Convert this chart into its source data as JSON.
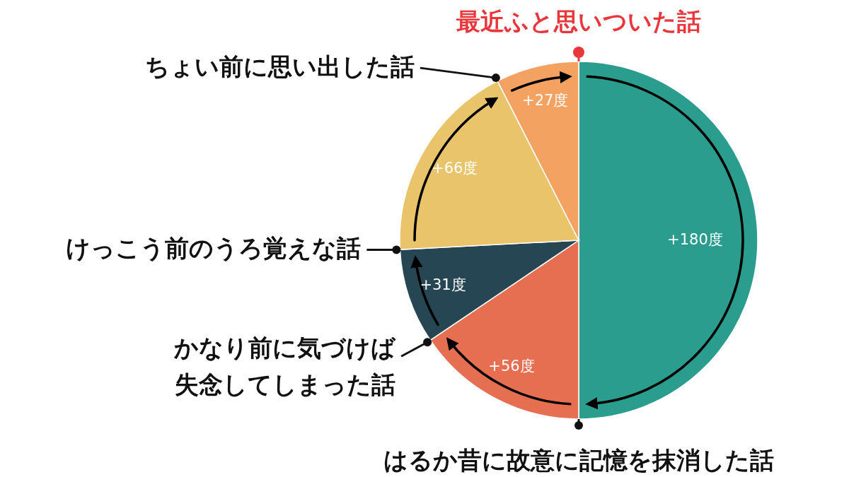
{
  "chart_data": {
    "type": "pie",
    "categories": [
      null,
      null,
      null,
      null,
      null
    ],
    "values": [
      180,
      56,
      31,
      66,
      27
    ],
    "colors": [
      "#2a9d8f",
      "#e76f51",
      "#264653",
      "#e9c46a",
      "#f4a261"
    ],
    "value_labels": [
      "+180度",
      "+56度",
      "+31度",
      "+66度",
      "+27度"
    ],
    "annotations": [
      "最近ふと思いついた話",
      "はるか昔に故意に記憶を抹消した話",
      "かなり前に気づけば失念してしまった話",
      "けっこう前のうろ覚えな話",
      "ちょい前に思い出した話"
    ]
  }
}
